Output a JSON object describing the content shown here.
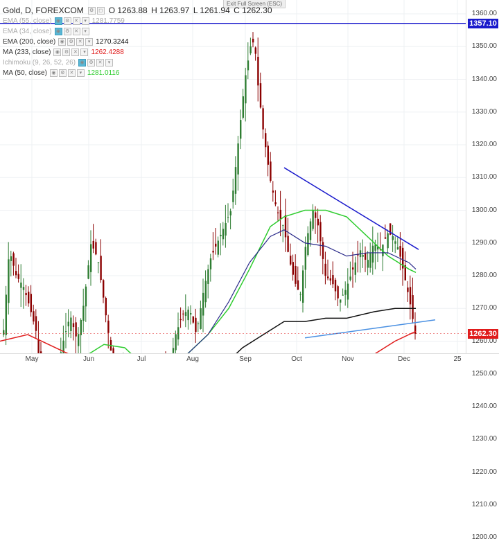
{
  "header": {
    "symbol": "Gold, D, FOREXCOM",
    "open": "O 1263.88",
    "high": "H 1263.97",
    "low": "L 1261.94",
    "close": "C 1262.30",
    "exit_fullscreen": "Exit Full Screen (ESC)"
  },
  "indicators": [
    {
      "label": "EMA (55, close)",
      "value": "1281.7759",
      "faded": true,
      "color": "#1a1a6e"
    },
    {
      "label": "EMA (34, close)",
      "value": "",
      "faded": true,
      "color": "#1a1a6e"
    },
    {
      "label": "EMA (200, close)",
      "value": "1270.3244",
      "faded": false,
      "color": "#111111"
    },
    {
      "label": "MA (233, close)",
      "value": "1262.4288",
      "faded": false,
      "color": "#e01b1b"
    },
    {
      "label": "Ichimoku (9, 26, 52, 26)",
      "value": "",
      "faded": true,
      "color": "#888888"
    },
    {
      "label": "MA (50, close)",
      "value": "1281.0116",
      "faded": false,
      "color": "#2ecc2e"
    }
  ],
  "price_axis": {
    "ticks": [
      "1360.00",
      "1350.00",
      "1340.00",
      "1330.00",
      "1320.00",
      "1310.00",
      "1300.00",
      "1290.00",
      "1280.00",
      "1270.00",
      "1260.00",
      "1250.00",
      "1240.00",
      "1230.00",
      "1220.00",
      "1210.00",
      "1200.00"
    ],
    "resistance_tag": "1357.10",
    "last_price_tag": "1262.30"
  },
  "time_axis": {
    "labels": [
      "May",
      "Jun",
      "Jul",
      "Aug",
      "Sep",
      "Oct",
      "Nov",
      "Dec",
      "25"
    ]
  },
  "colors": {
    "bull": "#2e7d32",
    "bear": "#8b0000",
    "resistance": "#1a1acc",
    "trendline_upper": "#1a1acc",
    "trendline_lower": "#4a90e2",
    "ema200": "#111111",
    "ma233": "#e01b1b",
    "ma50": "#2ecc2e",
    "ema55": "#2a2a8a"
  }
}
